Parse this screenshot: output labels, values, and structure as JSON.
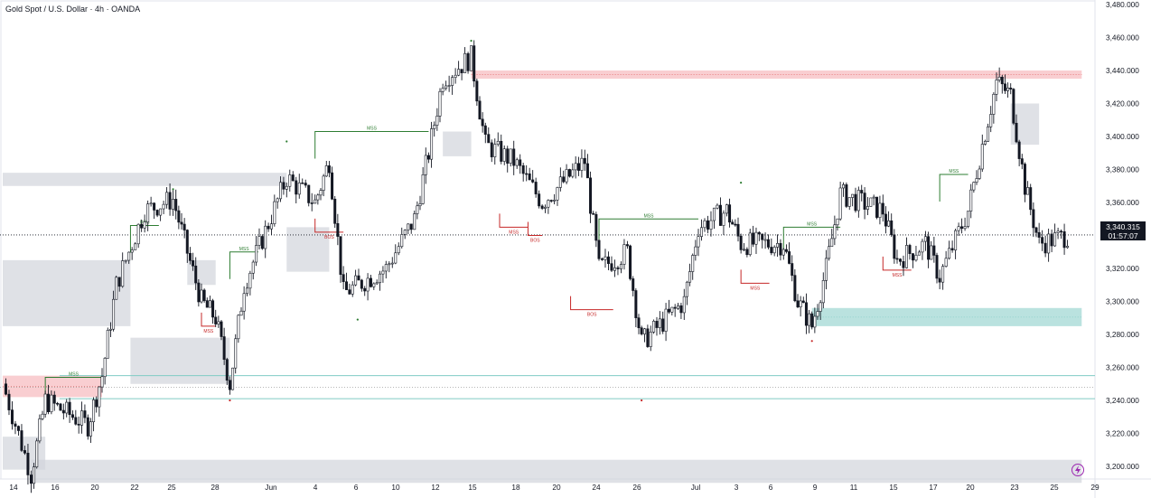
{
  "header": {
    "symbol": "Gold Spot / U.S. Dollar",
    "interval": "4h",
    "source": "OANDA",
    "separator": " · "
  },
  "price_badge": {
    "price": "3,340.315",
    "countdown": "01:57:07"
  },
  "colors": {
    "bullish": "#ffffff",
    "bearish": "#131722",
    "candle_border": "#131722",
    "supply_zone": "#f8c9cc",
    "demand_zone": "#b2dfdb",
    "neutral_zone": "#d1d4dc",
    "bos_line": "#2e7d32",
    "mss_bear": "#c62828",
    "grid_text": "#131722"
  },
  "icons": {
    "bottom_right": "lightning-bolt-icon"
  },
  "chart_data": {
    "type": "candlestick",
    "title": "Gold Spot / U.S. Dollar · 4h · OANDA",
    "ylim": [
      3180,
      3490
    ],
    "y_ticks": [
      3200,
      3220,
      3240,
      3260,
      3280,
      3300,
      3320,
      3340,
      3360,
      3380,
      3400,
      3420,
      3440,
      3460,
      3480
    ],
    "y_tick_labels": [
      "3,200.000",
      "3,220.000",
      "3,240.000",
      "3,260.000",
      "3,280.000",
      "3,300.000",
      "3,320.000",
      "3,340.000",
      "3,360.000",
      "3,380.000",
      "3,400.000",
      "3,420.000",
      "3,440.000",
      "3,460.000",
      "3,480.000"
    ],
    "x_tick_labels": [
      "14",
      "16",
      "20",
      "22",
      "25",
      "28",
      "Jun",
      "4",
      "6",
      "10",
      "12",
      "15",
      "18",
      "20",
      "24",
      "26",
      "Jul",
      "3",
      "6",
      "9",
      "11",
      "15",
      "17",
      "20",
      "23",
      "25",
      "29"
    ],
    "last_price": 3340.315,
    "price_path_keypoints": [
      {
        "date": "May 13",
        "price": 3250
      },
      {
        "date": "May 15",
        "price": 3195
      },
      {
        "date": "May 16",
        "price": 3240
      },
      {
        "date": "May 19",
        "price": 3225
      },
      {
        "date": "May 20",
        "price": 3255
      },
      {
        "date": "May 21",
        "price": 3310
      },
      {
        "date": "May 23",
        "price": 3355
      },
      {
        "date": "May 25",
        "price": 3362
      },
      {
        "date": "May 26",
        "price": 3330
      },
      {
        "date": "May 27",
        "price": 3300
      },
      {
        "date": "May 28",
        "price": 3290
      },
      {
        "date": "May 29",
        "price": 3250
      },
      {
        "date": "May 30",
        "price": 3310
      },
      {
        "date": "Jun 2",
        "price": 3375
      },
      {
        "date": "Jun 4",
        "price": 3360
      },
      {
        "date": "Jun 5",
        "price": 3385
      },
      {
        "date": "Jun 6",
        "price": 3305
      },
      {
        "date": "Jun 9",
        "price": 3320
      },
      {
        "date": "Jun 11",
        "price": 3350
      },
      {
        "date": "Jun 12",
        "price": 3390
      },
      {
        "date": "Jun 13",
        "price": 3435
      },
      {
        "date": "Jun 15",
        "price": 3448
      },
      {
        "date": "Jun 16",
        "price": 3395
      },
      {
        "date": "Jun 18",
        "price": 3385
      },
      {
        "date": "Jun 20",
        "price": 3360
      },
      {
        "date": "Jun 23",
        "price": 3385
      },
      {
        "date": "Jun 24",
        "price": 3320
      },
      {
        "date": "Jun 26",
        "price": 3330
      },
      {
        "date": "Jun 27",
        "price": 3275
      },
      {
        "date": "Jun 30",
        "price": 3300
      },
      {
        "date": "Jul 1",
        "price": 3345
      },
      {
        "date": "Jul 3",
        "price": 3355
      },
      {
        "date": "Jul 4",
        "price": 3335
      },
      {
        "date": "Jul 7",
        "price": 3335
      },
      {
        "date": "Jul 8",
        "price": 3300
      },
      {
        "date": "Jul 9",
        "price": 3285
      },
      {
        "date": "Jul 10",
        "price": 3320
      },
      {
        "date": "Jul 11",
        "price": 3365
      },
      {
        "date": "Jul 14",
        "price": 3355
      },
      {
        "date": "Jul 15",
        "price": 3325
      },
      {
        "date": "Jul 17",
        "price": 3335
      },
      {
        "date": "Jul 18",
        "price": 3315
      },
      {
        "date": "Jul 20",
        "price": 3355
      },
      {
        "date": "Jul 21",
        "price": 3395
      },
      {
        "date": "Jul 22",
        "price": 3433
      },
      {
        "date": "Jul 23",
        "price": 3425
      },
      {
        "date": "Jul 24",
        "price": 3370
      },
      {
        "date": "Jul 25",
        "price": 3335
      },
      {
        "date": "Jul 27",
        "price": 3340
      }
    ],
    "zones": [
      {
        "kind": "supply",
        "from": "May 13",
        "to": "May 20",
        "low": 3242,
        "high": 3255
      },
      {
        "kind": "supply",
        "from": "Jun 15",
        "to": "Jul 28",
        "low": 3435,
        "high": 3440
      },
      {
        "kind": "demand",
        "from": "Jul 9",
        "to": "Jul 28",
        "low": 3285,
        "high": 3296
      },
      {
        "kind": "neutral",
        "from": "May 13",
        "to": "Jun 2",
        "low": 3370,
        "high": 3378
      },
      {
        "kind": "neutral",
        "from": "May 13",
        "to": "May 22",
        "low": 3285,
        "high": 3325
      },
      {
        "kind": "neutral",
        "from": "May 22",
        "to": "May 29",
        "low": 3250,
        "high": 3278
      },
      {
        "kind": "neutral",
        "from": "May 26",
        "to": "May 28",
        "low": 3310,
        "high": 3325
      },
      {
        "kind": "neutral",
        "from": "Jun 2",
        "to": "Jun 5",
        "low": 3318,
        "high": 3345
      },
      {
        "kind": "neutral",
        "from": "Jun 13",
        "to": "Jun 15",
        "low": 3388,
        "high": 3403
      },
      {
        "kind": "neutral",
        "from": "Jul 23",
        "to": "Jul 25",
        "low": 3395,
        "high": 3420
      },
      {
        "kind": "neutral",
        "from": "May 15",
        "to": "Jul 28",
        "low": 3190,
        "high": 3204
      },
      {
        "kind": "neutral",
        "from": "May 13",
        "to": "May 16",
        "low": 3198,
        "high": 3218
      }
    ],
    "structure_labels": [
      {
        "text": "BOS",
        "date": "May 22",
        "price": 3346,
        "to": "May 24",
        "color": "bos_line"
      },
      {
        "text": "MSS",
        "date": "May 29",
        "price": 3330,
        "to": "May 31",
        "color": "bos_line"
      },
      {
        "text": "MSS",
        "date": "May 16",
        "price": 3254,
        "to": "May 20",
        "color": "bos_line"
      },
      {
        "text": "MSS",
        "date": "Jun 4",
        "price": 3403,
        "to": "Jun 12",
        "color": "bos_line"
      },
      {
        "text": "MSS",
        "date": "Jun 24",
        "price": 3350,
        "to": "Jul 1",
        "color": "bos_line"
      },
      {
        "text": "MSS",
        "date": "Jul 7",
        "price": 3345,
        "to": "Jul 11",
        "color": "bos_line"
      },
      {
        "text": "MSS",
        "date": "Jul 18",
        "price": 3377,
        "to": "Jul 20",
        "color": "bos_line"
      },
      {
        "text": "MSS",
        "date": "May 27",
        "price": 3285,
        "to": "May 28",
        "color": "mss_bear"
      },
      {
        "text": "BOS",
        "date": "Jun 4",
        "price": 3342,
        "to": "Jun 6",
        "color": "mss_bear"
      },
      {
        "text": "MSS",
        "date": "Jun 17",
        "price": 3345,
        "to": "Jun 19",
        "color": "mss_bear"
      },
      {
        "text": "BOS",
        "date": "Jun 19",
        "price": 3340,
        "to": "Jun 20",
        "color": "mss_bear"
      },
      {
        "text": "BOS",
        "date": "Jun 22",
        "price": 3295,
        "to": "Jun 25",
        "color": "mss_bear"
      },
      {
        "text": "MSS",
        "date": "Jul 4",
        "price": 3311,
        "to": "Jul 6",
        "color": "mss_bear"
      },
      {
        "text": "MSS",
        "date": "Jul 14",
        "price": 3319,
        "to": "Jul 16",
        "color": "mss_bear"
      }
    ],
    "horizontal_lines": [
      {
        "price": 3255,
        "color": "demand_zone"
      },
      {
        "price": 3241,
        "color": "demand_zone"
      }
    ],
    "swing_markers": [
      {
        "date": "May 25",
        "price": 3368,
        "color": "bos_line"
      },
      {
        "date": "Jun 2",
        "price": 3397,
        "color": "bos_line"
      },
      {
        "date": "Jun 15",
        "price": 3458,
        "color": "bos_line"
      },
      {
        "date": "Jul 4",
        "price": 3372,
        "color": "bos_line"
      },
      {
        "date": "Jun 7",
        "price": 3289,
        "color": "bos_line"
      },
      {
        "date": "May 29",
        "price": 3240,
        "color": "mss_bear"
      },
      {
        "date": "Jun 27",
        "price": 3240,
        "color": "mss_bear"
      },
      {
        "date": "Jul 9",
        "price": 3276,
        "color": "mss_bear"
      }
    ]
  }
}
